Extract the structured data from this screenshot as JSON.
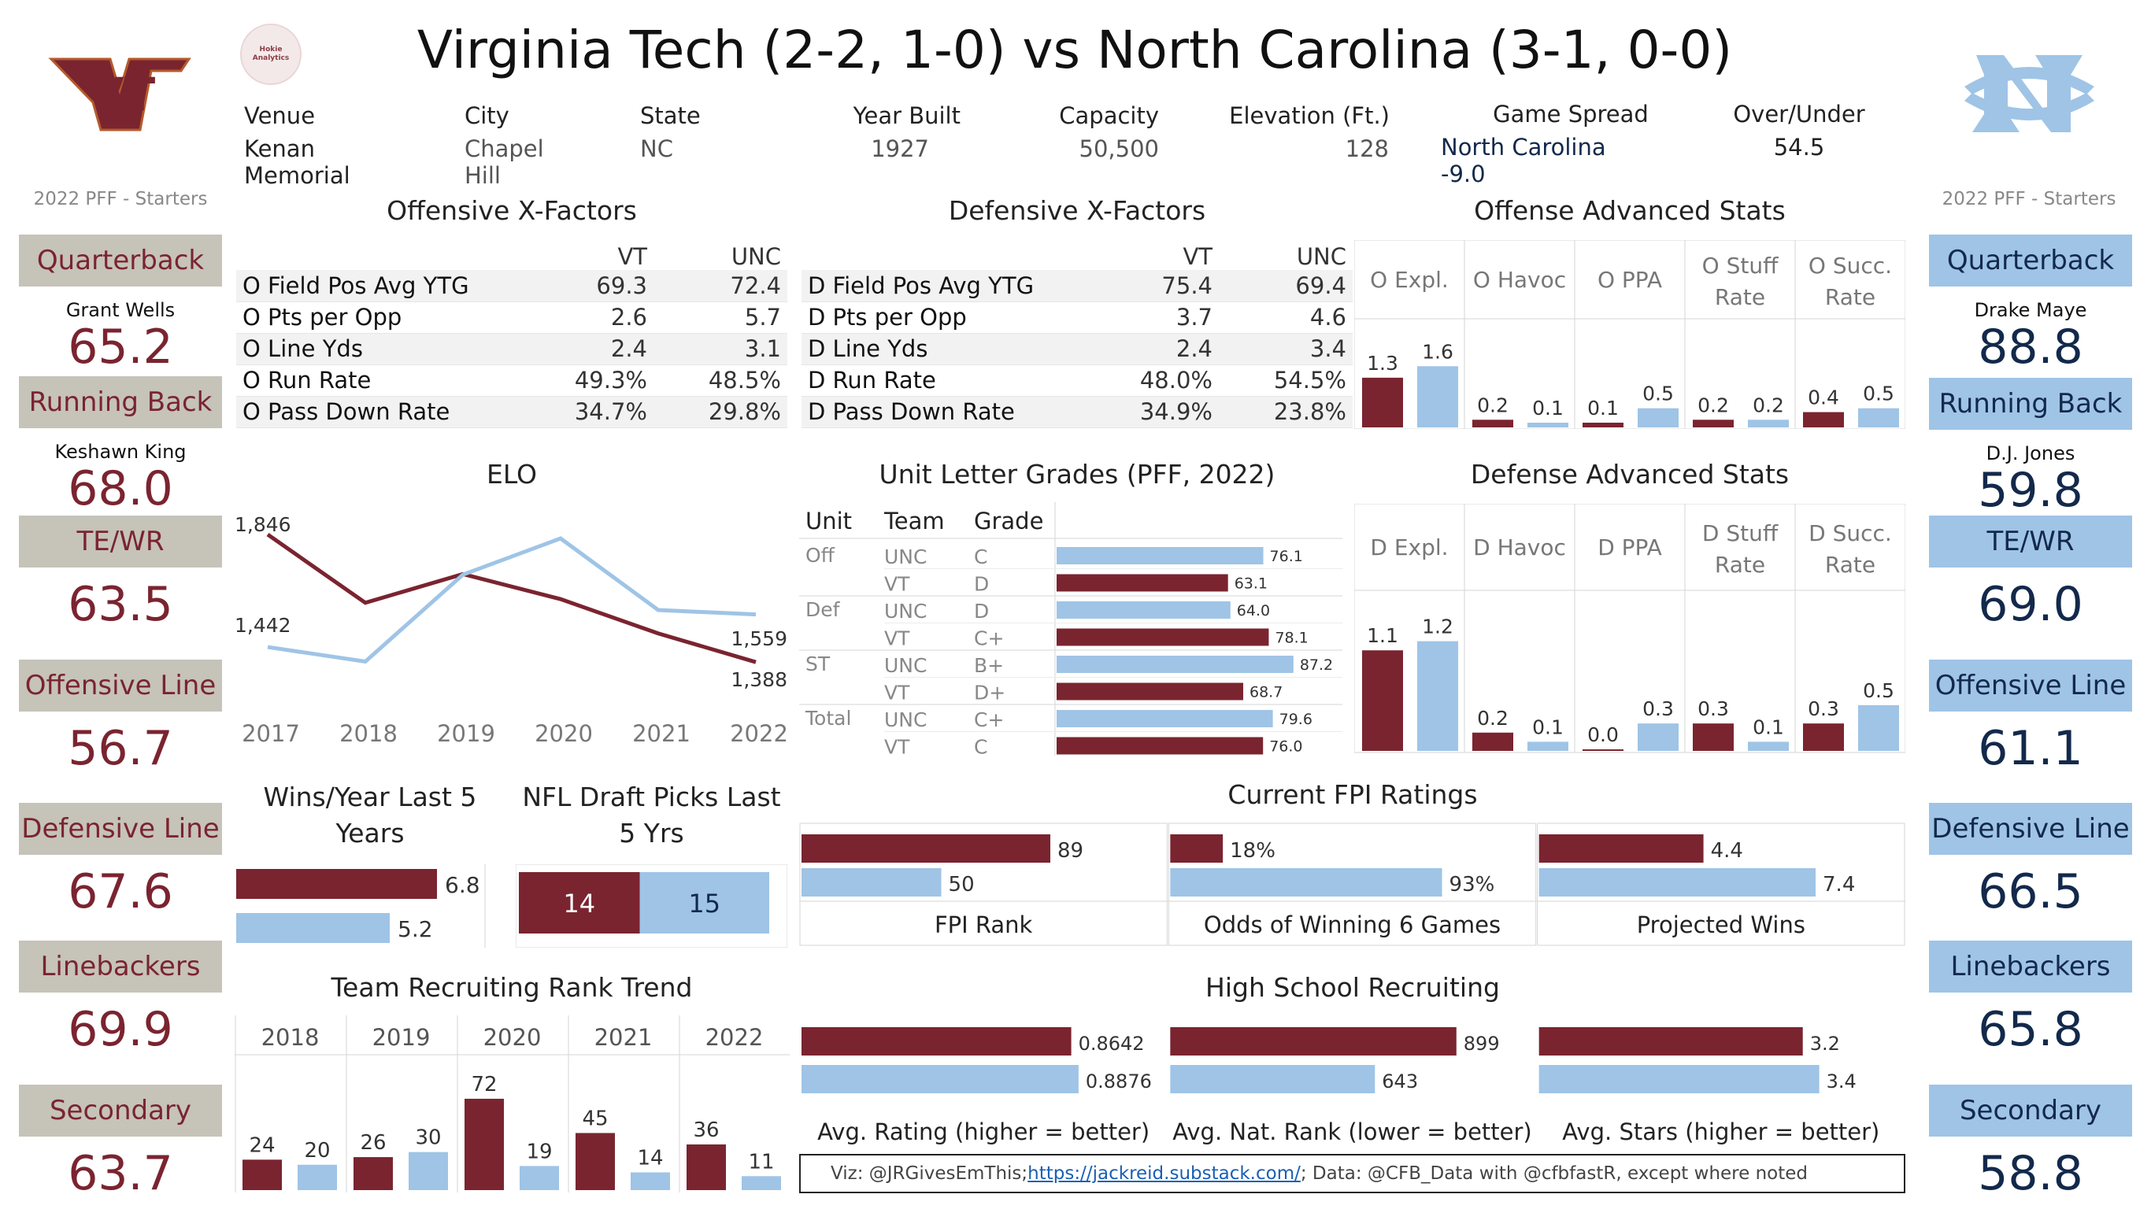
{
  "title": "Virginia Tech (2-2, 1-0) vs North Carolina (3-1, 0-0)",
  "logos": {
    "vt": "VT",
    "hokie_badge": "Hokie Analytics"
  },
  "colors": {
    "vt": "#7a2430",
    "unc": "#9fc4e6",
    "vt_box": "#c6c3b9",
    "unc_text": "#13294b"
  },
  "venue_info": [
    {
      "label": "Venue",
      "value": "Kenan Memorial"
    },
    {
      "label": "City",
      "value": "Chapel Hill"
    },
    {
      "label": "State",
      "value": "NC"
    },
    {
      "label": "Year Built",
      "value": "1927"
    },
    {
      "label": "Capacity",
      "value": "50,500"
    },
    {
      "label": "Elevation (Ft.)",
      "value": "128"
    },
    {
      "label": "Game Spread",
      "value": "North Carolina -9.0"
    },
    {
      "label": "Over/Under",
      "value": "54.5"
    }
  ],
  "vt_side": {
    "caption": "2022 PFF - Starters",
    "groups": [
      {
        "position": "Quarterback",
        "player": "Grant Wells",
        "grade": "65.2"
      },
      {
        "position": "Running Back",
        "player": "Keshawn King",
        "grade": "68.0"
      },
      {
        "position": "TE/WR",
        "player": "",
        "grade": "63.5"
      },
      {
        "position": "Offensive Line",
        "player": "",
        "grade": "56.7"
      },
      {
        "position": "Defensive Line",
        "player": "",
        "grade": "67.6"
      },
      {
        "position": "Linebackers",
        "player": "",
        "grade": "69.9"
      },
      {
        "position": "Secondary",
        "player": "",
        "grade": "63.7"
      }
    ]
  },
  "unc_side": {
    "caption": "2022 PFF - Starters",
    "groups": [
      {
        "position": "Quarterback",
        "player": "Drake Maye",
        "grade": "88.8"
      },
      {
        "position": "Running Back",
        "player": "D.J. Jones",
        "grade": "59.8"
      },
      {
        "position": "TE/WR",
        "player": "",
        "grade": "69.0"
      },
      {
        "position": "Offensive Line",
        "player": "",
        "grade": "61.1"
      },
      {
        "position": "Defensive Line",
        "player": "",
        "grade": "66.5"
      },
      {
        "position": "Linebackers",
        "player": "",
        "grade": "65.8"
      },
      {
        "position": "Secondary",
        "player": "",
        "grade": "58.8"
      }
    ]
  },
  "offensive_xfactors": {
    "title": "Offensive X-Factors",
    "headers": [
      "VT",
      "UNC"
    ],
    "rows": [
      {
        "label": "O Field Pos Avg YTG",
        "vt": "69.3",
        "unc": "72.4"
      },
      {
        "label": "O Pts per Opp",
        "vt": "2.6",
        "unc": "5.7"
      },
      {
        "label": "O Line Yds",
        "vt": "2.4",
        "unc": "3.1"
      },
      {
        "label": "O Run Rate",
        "vt": "49.3%",
        "unc": "48.5%"
      },
      {
        "label": "O Pass Down Rate",
        "vt": "34.7%",
        "unc": "29.8%"
      }
    ]
  },
  "defensive_xfactors": {
    "title": "Defensive X-Factors",
    "headers": [
      "VT",
      "UNC"
    ],
    "rows": [
      {
        "label": "D Field Pos Avg YTG",
        "vt": "75.4",
        "unc": "69.4"
      },
      {
        "label": "D Pts per Opp",
        "vt": "3.7",
        "unc": "4.6"
      },
      {
        "label": "D Line Yds",
        "vt": "2.4",
        "unc": "3.4"
      },
      {
        "label": "D Run Rate",
        "vt": "48.0%",
        "unc": "54.5%"
      },
      {
        "label": "D Pass Down Rate",
        "vt": "34.9%",
        "unc": "23.8%"
      }
    ]
  },
  "chart_data": [
    {
      "id": "offense_adv",
      "type": "bar",
      "title": "Offense Advanced Stats",
      "categories": [
        "O Expl.",
        "O Havoc",
        "O PPA",
        "O Stuff Rate",
        "O Succ. Rate"
      ],
      "category_lines": [
        [
          "O Expl."
        ],
        [
          "O Havoc"
        ],
        [
          "O PPA"
        ],
        [
          "O Stuff",
          "Rate"
        ],
        [
          "O Succ.",
          "Rate"
        ]
      ],
      "series": [
        {
          "values": [
            1.3,
            0.2,
            0.1,
            0.2,
            0.4
          ],
          "labels": [
            "1.3",
            "0.2",
            "0.1",
            "0.2",
            "0.4"
          ]
        },
        {
          "values": [
            1.6,
            0.1,
            0.5,
            0.2,
            0.5
          ],
          "labels": [
            "1.6",
            "0.1",
            "0.5",
            "0.2",
            "0.5"
          ]
        }
      ]
    },
    {
      "id": "defense_adv",
      "type": "bar",
      "title": "Defense Advanced Stats",
      "categories": [
        "D Expl.",
        "D Havoc",
        "D PPA",
        "D Stuff Rate",
        "D Succ. Rate"
      ],
      "category_lines": [
        [
          "D Expl."
        ],
        [
          "D Havoc"
        ],
        [
          "D PPA"
        ],
        [
          "D Stuff",
          "Rate"
        ],
        [
          "D Succ.",
          "Rate"
        ]
      ],
      "series": [
        {
          "values": [
            1.1,
            0.2,
            0.0,
            0.3,
            0.3
          ],
          "labels": [
            "1.1",
            "0.2",
            "0.0",
            "0.3",
            "0.3"
          ]
        },
        {
          "values": [
            1.2,
            0.1,
            0.3,
            0.1,
            0.5
          ],
          "labels": [
            "1.2",
            "0.1",
            "0.3",
            "0.1",
            "0.5"
          ]
        }
      ]
    },
    {
      "id": "elo",
      "type": "line",
      "title": "ELO",
      "x": [
        "2017",
        "2018",
        "2019",
        "2020",
        "2021",
        "2022"
      ],
      "ylim": [
        1250,
        1900
      ],
      "series": [
        {
          "team": "vt",
          "values": [
            1846,
            1601,
            1704,
            1614,
            1491,
            1388
          ]
        },
        {
          "team": "unc",
          "values": [
            1442,
            1390,
            1702,
            1832,
            1575,
            1559
          ]
        }
      ],
      "endpoint_labels": {
        "vt_start": "1,846",
        "unc_start": "1,442",
        "unc_end": "1,559",
        "vt_end": "1,388"
      }
    },
    {
      "id": "unit_grades",
      "type": "bar",
      "title": "Unit Letter Grades (PFF, 2022)",
      "headers": [
        "Unit",
        "Team",
        "Grade"
      ],
      "xlim": [
        0,
        100
      ],
      "rows": [
        {
          "unit": "Off",
          "team": "UNC",
          "grade": "C",
          "value": 76.1,
          "label": "76.1"
        },
        {
          "unit": "",
          "team": "VT",
          "grade": "D",
          "value": 63.1,
          "label": "63.1"
        },
        {
          "unit": "Def",
          "team": "UNC",
          "grade": "D",
          "value": 64.0,
          "label": "64.0"
        },
        {
          "unit": "",
          "team": "VT",
          "grade": "C+",
          "value": 78.1,
          "label": "78.1"
        },
        {
          "unit": "ST",
          "team": "UNC",
          "grade": "B+",
          "value": 87.2,
          "label": "87.2"
        },
        {
          "unit": "",
          "team": "VT",
          "grade": "D+",
          "value": 68.7,
          "label": "68.7"
        },
        {
          "unit": "Total",
          "team": "UNC",
          "grade": "C+",
          "value": 79.6,
          "label": "79.6"
        },
        {
          "unit": "",
          "team": "VT",
          "grade": "C",
          "value": 76.0,
          "label": "76.0"
        }
      ]
    },
    {
      "id": "wins",
      "type": "bar",
      "title": "Wins/Year Last 5 Years",
      "title_lines": [
        "Wins/Year Last 5",
        "Years"
      ],
      "series": [
        {
          "values": [
            6.8,
            5.2
          ],
          "labels": [
            "6.8",
            "5.2"
          ]
        }
      ]
    },
    {
      "id": "draft",
      "type": "bar",
      "title": "NFL Draft Picks Last 5 Yrs",
      "title_lines": [
        "NFL Draft Picks Last",
        "5 Yrs"
      ],
      "series": [
        {
          "values": [
            14,
            15
          ],
          "labels": [
            "14",
            "15"
          ]
        }
      ]
    },
    {
      "id": "fpi",
      "type": "bar",
      "title": "Current FPI Ratings",
      "panels": [
        {
          "name": "FPI Rank",
          "vt": 89,
          "unc": 50,
          "vt_label": "89",
          "unc_label": "50",
          "max": 115
        },
        {
          "name": "Odds of Winning 6 Games",
          "vt": 18,
          "unc": 93,
          "vt_label": "18%",
          "unc_label": "93%",
          "max": 110
        },
        {
          "name": "Projected Wins",
          "vt": 4.4,
          "unc": 7.4,
          "vt_label": "4.4",
          "unc_label": "7.4",
          "max": 8.6
        }
      ]
    },
    {
      "id": "recruit_trend",
      "type": "bar",
      "title": "Team Recruiting Rank Trend",
      "categories": [
        "2018",
        "2019",
        "2020",
        "2021",
        "2022"
      ],
      "ylim": [
        0,
        85
      ],
      "series": [
        {
          "values": [
            24,
            26,
            72,
            45,
            36
          ],
          "labels": [
            "24",
            "26",
            "72",
            "45",
            "36"
          ]
        },
        {
          "values": [
            20,
            30,
            19,
            14,
            11
          ],
          "labels": [
            "20",
            "30",
            "19",
            "14",
            "11"
          ]
        }
      ]
    },
    {
      "id": "hs_recruit",
      "type": "bar",
      "title": "High School Recruiting",
      "panels": [
        {
          "name": "Avg. Rating (higher = better)",
          "vt": 0.8642,
          "unc": 0.8876,
          "vt_label": "0.8642",
          "unc_label": "0.8876",
          "max": 1.03
        },
        {
          "name": "Avg. Nat. Rank (lower = better)",
          "vt": 899,
          "unc": 643,
          "vt_label": "899",
          "unc_label": "643",
          "max": 1010
        },
        {
          "name": "Avg. Stars (higher = better)",
          "vt": 3.2,
          "unc": 3.4,
          "vt_label": "3.2",
          "unc_label": "3.4",
          "max": 3.9
        }
      ]
    }
  ],
  "footer": {
    "prefix": "Viz: @JRGivesEmThis; ",
    "link": "https://jackreid.substack.com/",
    "suffix": "; Data: @CFB_Data with @cfbfastR, except where noted"
  }
}
